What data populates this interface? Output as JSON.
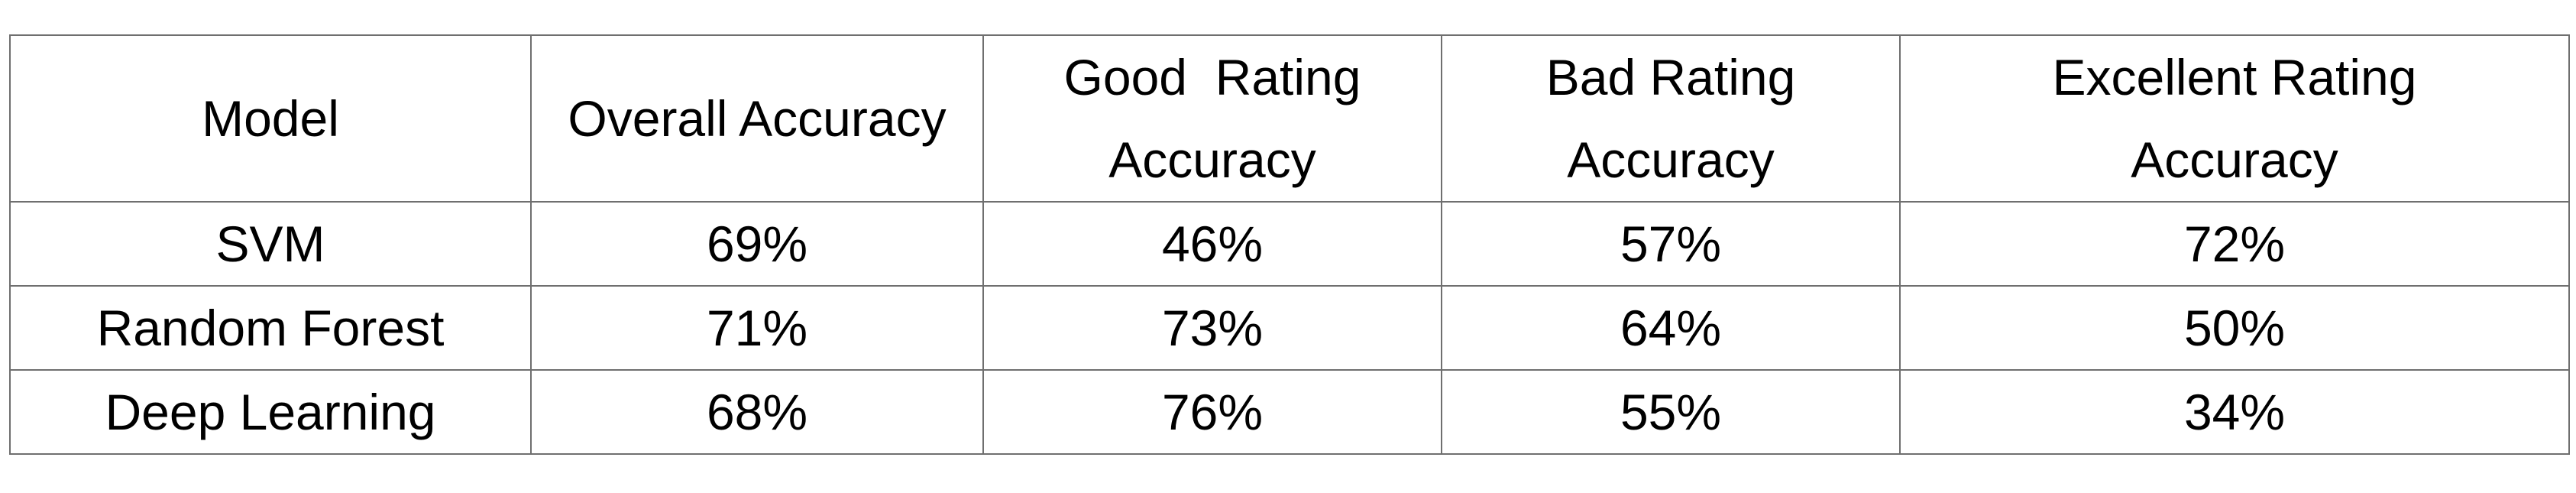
{
  "table": {
    "headers": [
      {
        "lines": [
          "Model"
        ]
      },
      {
        "lines": [
          "Overall Accuracy"
        ]
      },
      {
        "lines": [
          "Good  Rating",
          "Accuracy"
        ]
      },
      {
        "lines": [
          "Bad Rating",
          "Accuracy"
        ]
      },
      {
        "lines": [
          "Excellent Rating",
          "Accuracy"
        ]
      }
    ],
    "rows": [
      {
        "cells": [
          "SVM",
          "69%",
          "46%",
          "57%",
          "72%"
        ]
      },
      {
        "cells": [
          "Random Forest",
          "71%",
          "73%",
          "64%",
          "50%"
        ]
      },
      {
        "cells": [
          "Deep Learning",
          "68%",
          "76%",
          "55%",
          "34%"
        ]
      }
    ]
  },
  "colors": {
    "border": "#6f6f6f",
    "text": "#000000",
    "background": "#ffffff"
  }
}
